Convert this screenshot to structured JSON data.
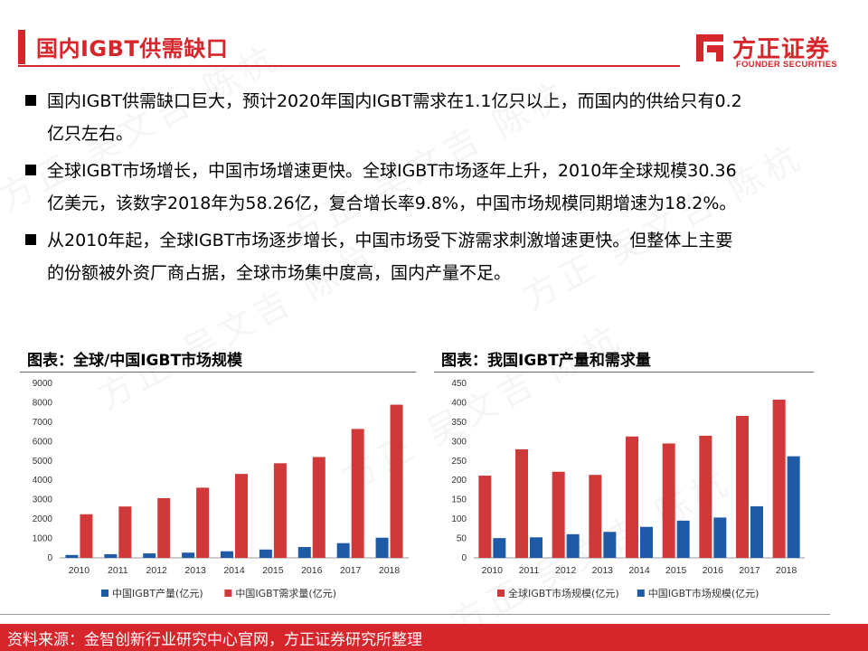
{
  "page": {
    "title": "国内IGBT供需缺口",
    "accent": "#d7262b",
    "bullets": [
      {
        "line1": "国内IGBT供需缺口巨大，预计2020年国内IGBT需求在1.1亿只以上，而国内的供给只有0.2",
        "line2": "亿只左右。"
      },
      {
        "line1": "全球IGBT市场增长，中国市场增速更快。全球IGBT市场逐年上升，2010年全球规模30.36",
        "line2": "亿美元，该数字2018年为58.26亿，复合增长率9.8%，中国市场规模同期增速为18.2%。"
      },
      {
        "line1": "从2010年起，全球IGBT市场逐步增长，中国市场受下游需求刺激增速更快。但整体上主要",
        "line2": "的份额被外资厂商占据，全球市场集中度高，国内产量不足。"
      }
    ],
    "footer": "资料来源：金智创新行业研究中心官网，方正证券研究所整理",
    "watermark": "方正 吴文吉 陈杭"
  },
  "logo": {
    "cn": "方正证券",
    "en": "FOUNDER SECURITIES"
  },
  "colors": {
    "red": "#d0383a",
    "blue": "#1f5aa6"
  },
  "chart_data": [
    {
      "type": "bar",
      "title": "图表：全球/中国IGBT市场规模",
      "categories": [
        "2010",
        "2011",
        "2012",
        "2013",
        "2014",
        "2015",
        "2016",
        "2017",
        "2018"
      ],
      "ylim": [
        0,
        9000
      ],
      "yticks": [
        0,
        1000,
        2000,
        3000,
        4000,
        5000,
        6000,
        7000,
        8000,
        9000
      ],
      "legend_position": "bottom",
      "grid": false,
      "series": [
        {
          "name": "中国IGBT产量(亿元)",
          "color": "#1f5aa6",
          "values": [
            150,
            190,
            230,
            270,
            340,
            430,
            560,
            760,
            1040
          ]
        },
        {
          "name": "中国IGBT需求量(亿元)",
          "color": "#d0383a",
          "values": [
            2250,
            2650,
            3080,
            3620,
            4330,
            4880,
            5200,
            6650,
            7900
          ]
        }
      ]
    },
    {
      "type": "bar",
      "title": "图表：我国IGBT产量和需求量",
      "categories": [
        "2010",
        "2011",
        "2012",
        "2013",
        "2014",
        "2015",
        "2016",
        "2017",
        "2018"
      ],
      "ylim": [
        0,
        450
      ],
      "yticks": [
        0,
        50,
        100,
        150,
        200,
        250,
        300,
        350,
        400,
        450
      ],
      "legend_position": "bottom",
      "grid": false,
      "series": [
        {
          "name": "全球IGBT市场规模(亿元)",
          "color": "#d0383a",
          "values": [
            212,
            280,
            222,
            214,
            313,
            295,
            315,
            366,
            408
          ]
        },
        {
          "name": "中国IGBT市场规模(亿元)",
          "color": "#1f5aa6",
          "values": [
            51,
            53,
            61,
            67,
            80,
            96,
            104,
            133,
            262
          ]
        }
      ]
    }
  ]
}
